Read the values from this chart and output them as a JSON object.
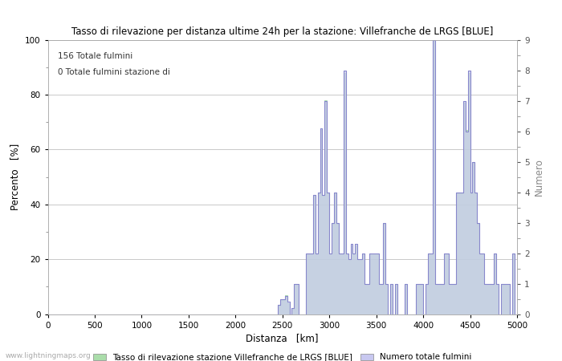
{
  "title": "Tasso di rilevazione per distanza ultime 24h per la stazione: Villefranche de LRGS [BLUE]",
  "xlabel": "Distanza   [km]",
  "ylabel_left": "Percento   [%]",
  "ylabel_right": "Numero",
  "annotation_line1": "156 Totale fulmini",
  "annotation_line2": "0 Totale fulmini stazione di",
  "xlim": [
    0,
    5000
  ],
  "ylim_left": [
    0,
    100
  ],
  "ylim_right": [
    0,
    9.0
  ],
  "yticks_left": [
    0,
    20,
    40,
    60,
    80,
    100
  ],
  "yticks_right": [
    0.0,
    1.0,
    2.0,
    3.0,
    4.0,
    5.0,
    6.0,
    7.0,
    8.0,
    9.0
  ],
  "xticks": [
    0,
    500,
    1000,
    1500,
    2000,
    2500,
    3000,
    3500,
    4000,
    4500,
    5000
  ],
  "background_color": "#ffffff",
  "grid_color": "#c0c0c0",
  "fill_color_percent": "#aaddaa",
  "fill_color_count": "#c8c8f0",
  "line_color": "#8888cc",
  "watermark": "www.lightningmaps.org",
  "legend_label1": "Tasso di rilevazione stazione Villefranche de LRGS [BLUE]",
  "legend_label2": "Numero totale fulmini",
  "spike_data": [
    [
      2450,
      3,
      0.3
    ],
    [
      2475,
      5,
      0.5
    ],
    [
      2500,
      5,
      0.5
    ],
    [
      2525,
      7,
      0.6
    ],
    [
      2550,
      4,
      0.4
    ],
    [
      2575,
      0,
      0
    ],
    [
      2600,
      2,
      0.2
    ],
    [
      2625,
      11,
      1.0
    ],
    [
      2650,
      11,
      1.0
    ],
    [
      2675,
      0,
      0
    ],
    [
      2700,
      0,
      0
    ],
    [
      2725,
      0,
      0
    ],
    [
      2750,
      22,
      2.0
    ],
    [
      2775,
      22,
      2.0
    ],
    [
      2800,
      22,
      2.0
    ],
    [
      2825,
      43,
      3.9
    ],
    [
      2850,
      22,
      2.0
    ],
    [
      2875,
      44,
      4.0
    ],
    [
      2900,
      67,
      6.1
    ],
    [
      2925,
      43,
      3.9
    ],
    [
      2950,
      78,
      7.0
    ],
    [
      2975,
      44,
      4.0
    ],
    [
      3000,
      22,
      2.0
    ],
    [
      3025,
      33,
      3.0
    ],
    [
      3050,
      44,
      4.0
    ],
    [
      3075,
      33,
      3.0
    ],
    [
      3100,
      22,
      2.0
    ],
    [
      3125,
      22,
      2.0
    ],
    [
      3150,
      88,
      8.0
    ],
    [
      3175,
      22,
      2.0
    ],
    [
      3200,
      20,
      1.8
    ],
    [
      3225,
      25,
      2.3
    ],
    [
      3250,
      22,
      2.0
    ],
    [
      3275,
      25,
      2.3
    ],
    [
      3300,
      20,
      1.8
    ],
    [
      3325,
      20,
      1.8
    ],
    [
      3350,
      22,
      2.0
    ],
    [
      3375,
      11,
      1.0
    ],
    [
      3400,
      11,
      1.0
    ],
    [
      3425,
      22,
      2.0
    ],
    [
      3450,
      22,
      2.0
    ],
    [
      3475,
      22,
      2.0
    ],
    [
      3500,
      22,
      2.0
    ],
    [
      3525,
      11,
      1.0
    ],
    [
      3550,
      11,
      1.0
    ],
    [
      3575,
      33,
      3.0
    ],
    [
      3600,
      11,
      1.0
    ],
    [
      3625,
      0,
      0
    ],
    [
      3650,
      11,
      1.0
    ],
    [
      3700,
      11,
      1.0
    ],
    [
      3750,
      0,
      0
    ],
    [
      3800,
      11,
      1.0
    ],
    [
      3850,
      0,
      0
    ],
    [
      3900,
      0,
      0
    ],
    [
      3925,
      11,
      1.0
    ],
    [
      3950,
      11,
      1.0
    ],
    [
      3975,
      11,
      1.0
    ],
    [
      4000,
      0,
      0
    ],
    [
      4025,
      11,
      1.0
    ],
    [
      4050,
      22,
      2.0
    ],
    [
      4075,
      22,
      2.0
    ],
    [
      4100,
      100,
      9.0
    ],
    [
      4125,
      11,
      1.0
    ],
    [
      4150,
      11,
      1.0
    ],
    [
      4175,
      11,
      1.0
    ],
    [
      4200,
      11,
      1.0
    ],
    [
      4225,
      22,
      2.0
    ],
    [
      4250,
      22,
      2.0
    ],
    [
      4275,
      11,
      1.0
    ],
    [
      4300,
      11,
      1.0
    ],
    [
      4325,
      11,
      1.0
    ],
    [
      4350,
      44,
      4.0
    ],
    [
      4375,
      44,
      4.0
    ],
    [
      4400,
      44,
      4.0
    ],
    [
      4425,
      77,
      7.0
    ],
    [
      4450,
      67,
      6.0
    ],
    [
      4475,
      88,
      8.0
    ],
    [
      4500,
      44,
      4.0
    ],
    [
      4525,
      55,
      5.0
    ],
    [
      4550,
      44,
      4.0
    ],
    [
      4575,
      33,
      3.0
    ],
    [
      4600,
      22,
      2.0
    ],
    [
      4625,
      22,
      2.0
    ],
    [
      4650,
      11,
      1.0
    ],
    [
      4675,
      11,
      1.0
    ],
    [
      4700,
      11,
      1.0
    ],
    [
      4725,
      11,
      1.0
    ],
    [
      4750,
      22,
      2.0
    ],
    [
      4775,
      11,
      1.0
    ],
    [
      4800,
      0,
      0
    ],
    [
      4825,
      11,
      1.0
    ],
    [
      4850,
      11,
      1.0
    ],
    [
      4875,
      11,
      1.0
    ],
    [
      4900,
      11,
      1.0
    ],
    [
      4925,
      0,
      0
    ],
    [
      4950,
      22,
      2.0
    ],
    [
      4975,
      0,
      0
    ]
  ]
}
